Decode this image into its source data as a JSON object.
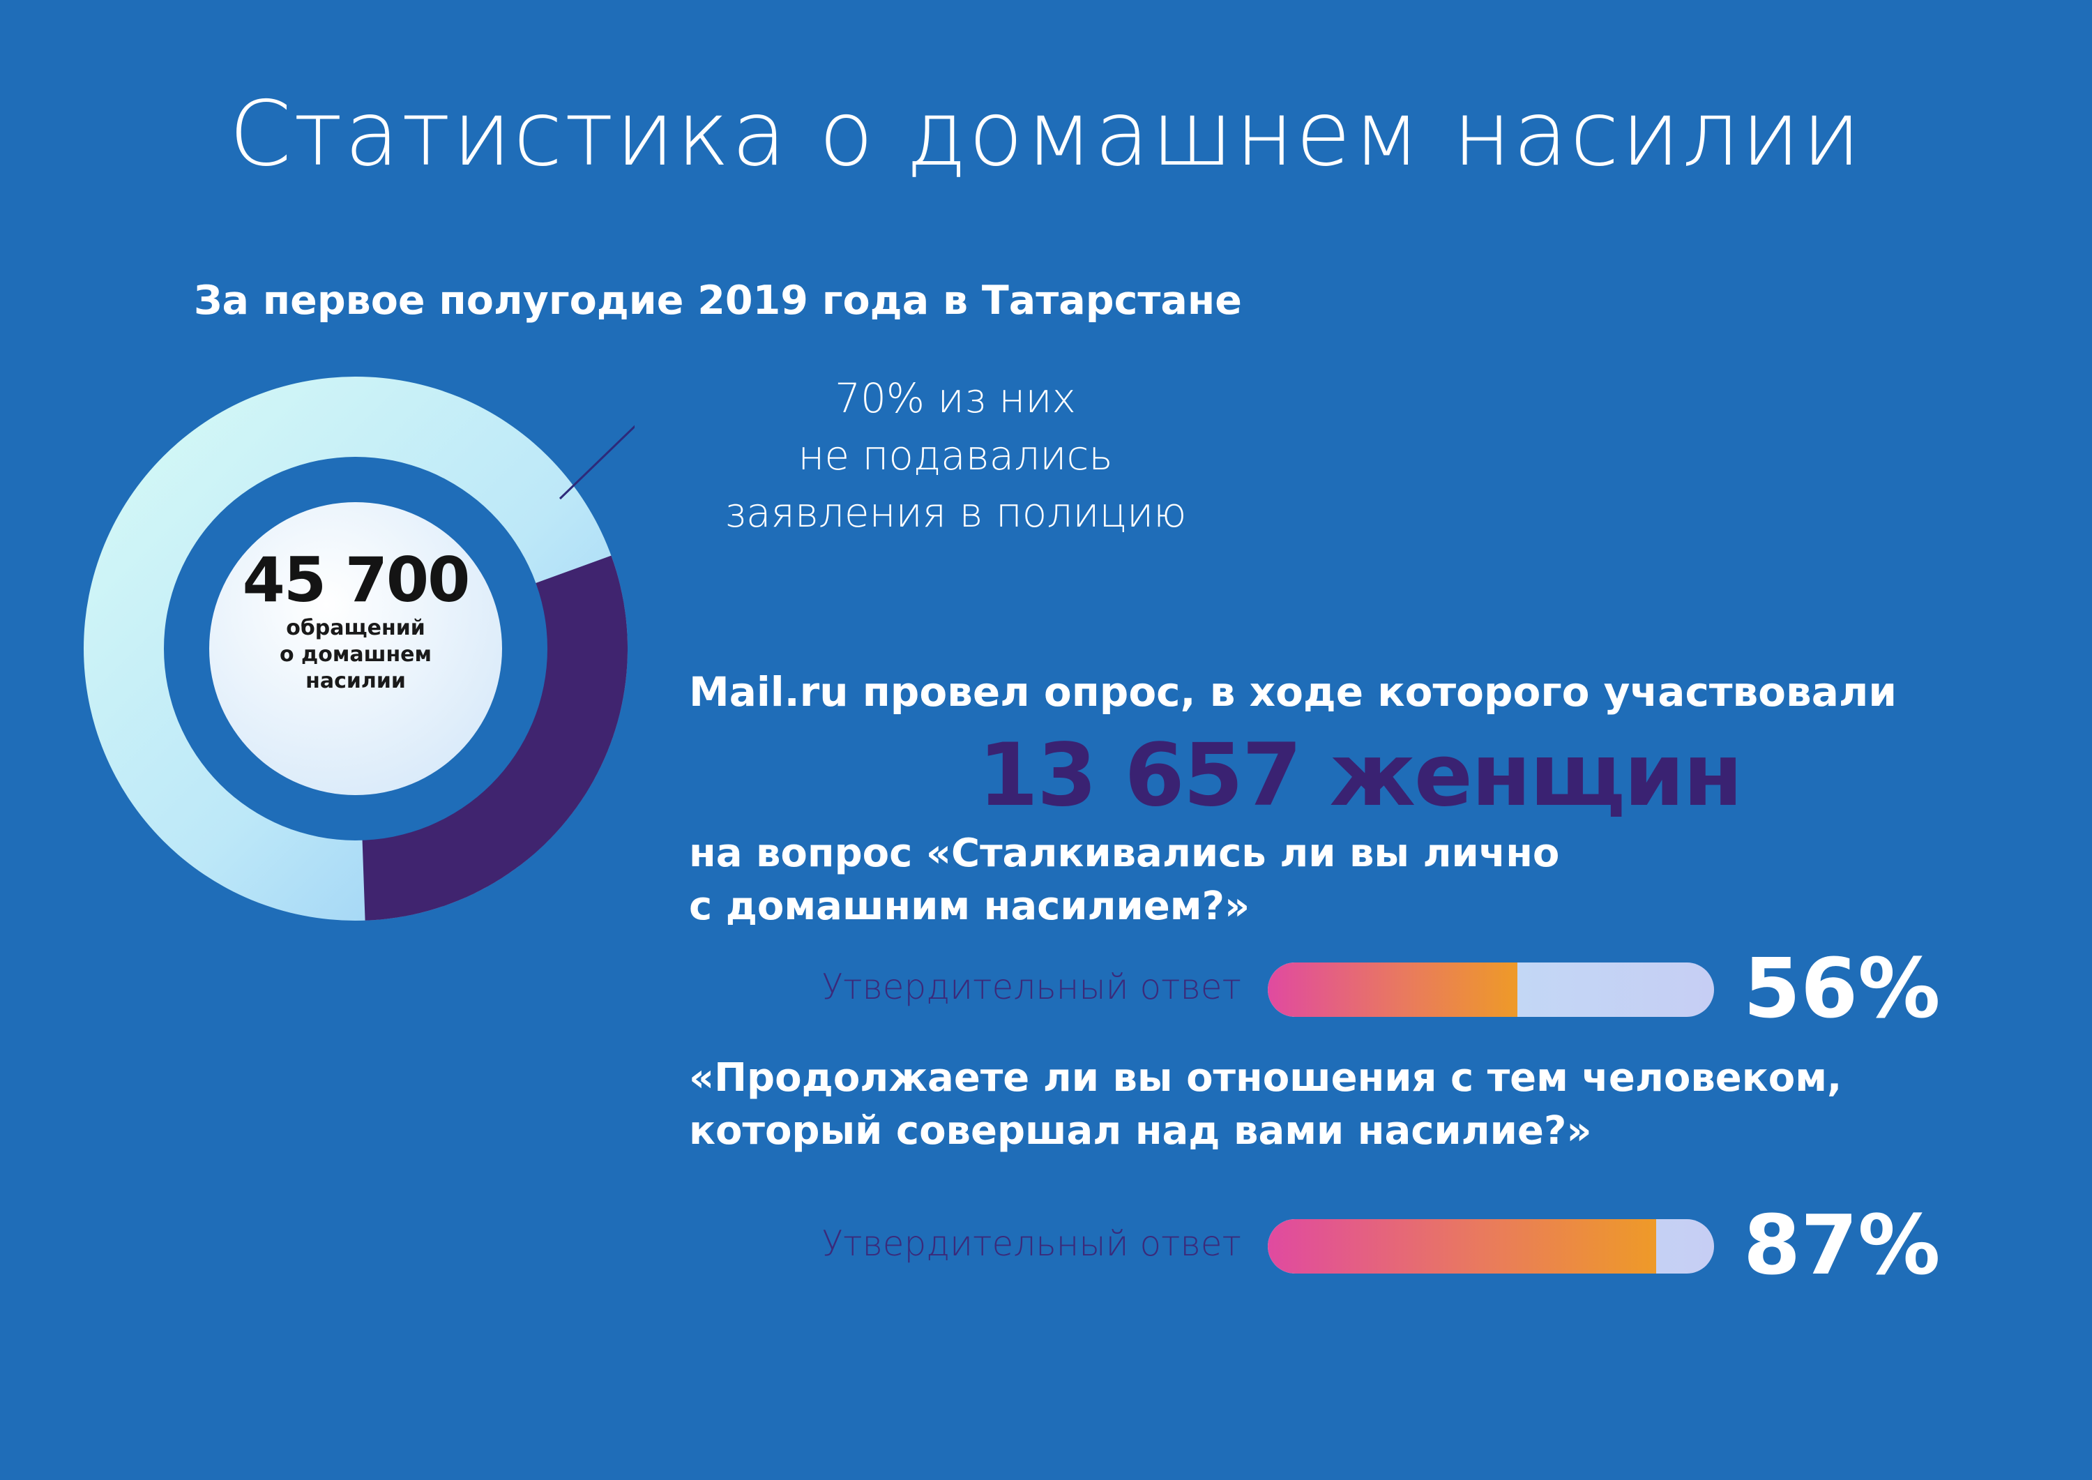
{
  "header": {
    "title": "Статистика о домашнем насилии",
    "subtitle": "За первое полугодие 2019 года в Татарстане"
  },
  "donut": {
    "number": "45 700",
    "label_lines": [
      "обращений",
      "о домашнем",
      "насилии"
    ],
    "callout_lines": [
      "70% из них",
      "не подавались",
      "заявления в полицию"
    ],
    "highlight_share": 0.3,
    "colors": {
      "main": "#bde8f8",
      "highlight": "#40246f",
      "ring_inner": "#1f6db8",
      "center": "#e9f2fc"
    }
  },
  "survey": {
    "intro": "Mail.ru провел опрос, в ходе которого участвовали",
    "count": "13 657 женщин",
    "questions": [
      {
        "text_lines": [
          "на вопрос «Сталкивались ли вы лично",
          "с домашним насилием?»"
        ],
        "answer_label": "Утвердительный ответ",
        "percent_text": "56%",
        "percent_value": 56
      },
      {
        "text_lines": [
          "«Продолжаете ли вы отношения с тем человеком,",
          "который совершал над вами насилие?»"
        ],
        "answer_label": "Утвердительный ответ",
        "percent_text": "87%",
        "percent_value": 87
      }
    ]
  },
  "colors": {
    "background": "#1f6db8",
    "accent_dark": "#3a2272",
    "bar_gradient": [
      "#e04aa0",
      "#ee9a28"
    ],
    "bar_track": "#c2dcf6"
  }
}
